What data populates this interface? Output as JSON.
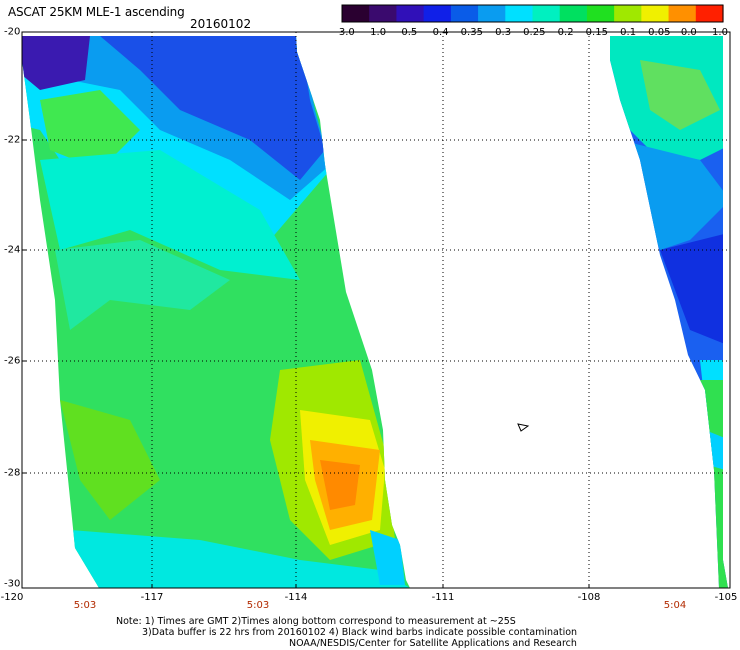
{
  "header": {
    "title": "ASCAT 25KM MLE-1 ascending",
    "date": "20160102"
  },
  "colorbar": {
    "ticks": [
      "-3.0",
      "-1.0",
      "-0.5",
      "-0.4",
      "-0.35",
      "-0.3",
      "-0.25",
      "-0.2",
      "-0.15",
      "-0.1",
      "-0.05",
      "0.0",
      "1.0"
    ],
    "colors": [
      "#2a0030",
      "#3a0a6e",
      "#3010b8",
      "#1020e8",
      "#0a5ce8",
      "#0a9cf0",
      "#00e0ff",
      "#00f0c0",
      "#00e060",
      "#20e020",
      "#a0e800",
      "#f0f000",
      "#ff9000",
      "#ff2000"
    ]
  },
  "axes": {
    "lat_labels": [
      "-20",
      "-22",
      "-24",
      "-26",
      "-28",
      "-30"
    ],
    "lon_labels": [
      "-120",
      "-117",
      "-114",
      "-111",
      "-108",
      "-105"
    ],
    "time_labels": [
      "5:03",
      "5:03",
      "5:04"
    ]
  },
  "notes": {
    "line1": "Note: 1) Times are GMT 2)Times along bottom correspond to measurement at ~25S",
    "line2": "3)Data buffer is 22 hrs from 20160102 4) Black wind barbs indicate possible contamination",
    "line3": "NOAA/NESDIS/Center for Satellite Applications and Research"
  }
}
